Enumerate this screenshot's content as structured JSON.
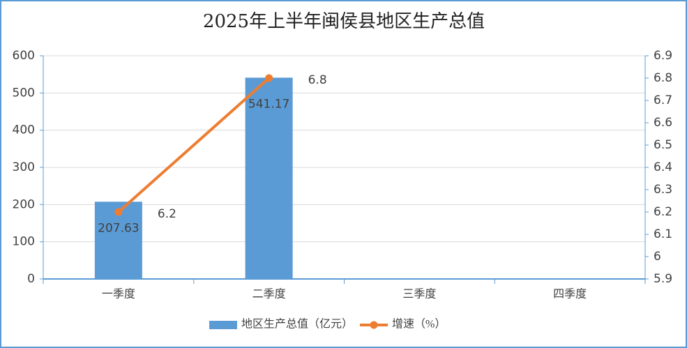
{
  "chart_data": {
    "type": "combo",
    "title": "2025年上半年闽侯县地区生产总值",
    "categories": [
      "一季度",
      "二季度",
      "三季度",
      "四季度"
    ],
    "series": [
      {
        "name": "地区生产总值（亿元）",
        "type": "bar",
        "color": "#5b9bd5",
        "values": [
          207.63,
          541.17,
          null,
          null
        ]
      },
      {
        "name": "增速（%）",
        "type": "line",
        "axis": "y2",
        "color": "#ed7d31",
        "values": [
          6.2,
          6.8,
          null,
          null
        ]
      }
    ],
    "ylim": [
      0,
      600
    ],
    "yticks": [
      0,
      100,
      200,
      300,
      400,
      500,
      600
    ],
    "y2lim": [
      5.9,
      6.9
    ],
    "y2ticks": [
      5.9,
      6,
      6.1,
      6.2,
      6.3,
      6.4,
      6.5,
      6.6,
      6.7,
      6.8,
      6.9
    ],
    "grid": true,
    "legend": "bottom"
  }
}
